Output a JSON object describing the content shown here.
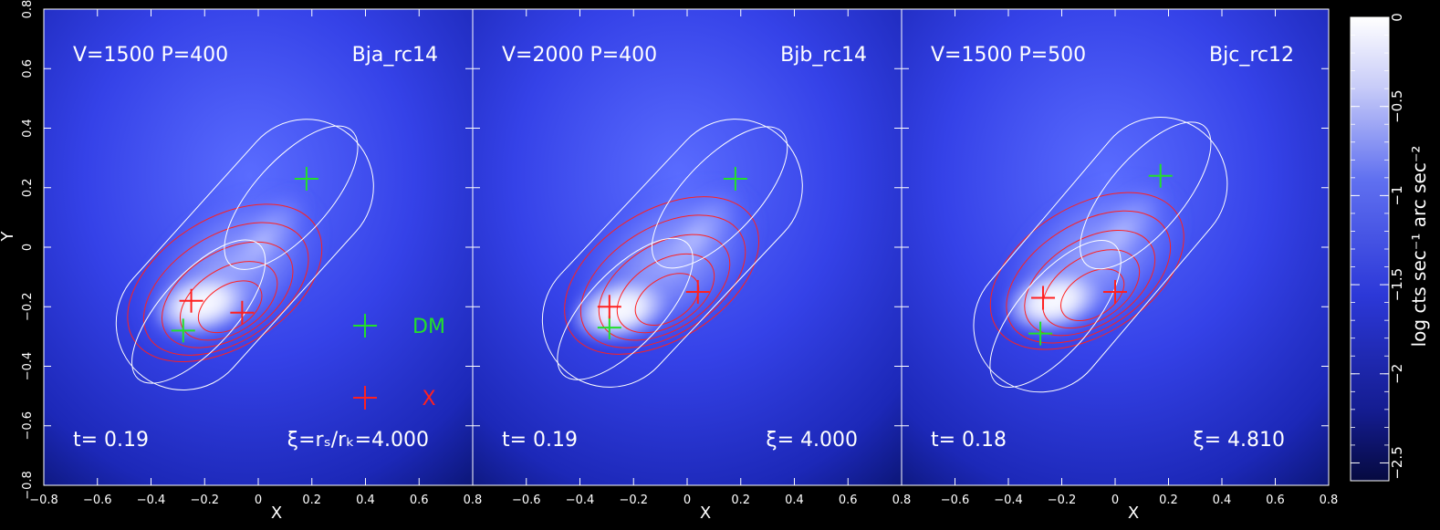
{
  "figure": {
    "x_axis_label": "X",
    "y_axis_label": "Y",
    "colorbar_label": "log cts sec⁻¹ arc sec⁻²",
    "colorbar_ticks": [
      "0",
      "−0.5",
      "−1",
      "−1.5",
      "−2",
      "−2.5"
    ],
    "legend": {
      "dm_label": "DM",
      "x_label": "X"
    },
    "colors": {
      "background": "#000000",
      "map_deep": "#0a1470",
      "map_mid": "#3040e0",
      "map_light": "#ffffff",
      "red_contour": "#ff2020",
      "white_contour": "#ffffff",
      "dm_marker": "#22e02a",
      "x_marker": "#ff2020",
      "tick_text": "#ffffff"
    }
  },
  "chart_data": [
    {
      "type": "heatmap",
      "title_left": "V=1500   P=400",
      "title_right": "Bja_rc14",
      "time_label": "t=   0.19",
      "xi_label": "ξ=rₛ/rₖ=4.000",
      "xlim": [
        -0.8,
        0.8
      ],
      "ylim": [
        -0.8,
        0.8
      ],
      "x_ticks": [
        "−0.8",
        "−0.6",
        "−0.4",
        "−0.2",
        "0",
        "0.2",
        "0.4",
        "0.6",
        "0.8"
      ],
      "y_ticks": [
        "−0.8",
        "−0.6",
        "−0.4",
        "−0.2",
        "0",
        "0.2",
        "0.4",
        "0.6",
        "0.8"
      ],
      "dm_peaks": [
        [
          -0.28,
          -0.28
        ],
        [
          0.18,
          0.23
        ]
      ],
      "x_peaks": [
        [
          -0.25,
          -0.18
        ],
        [
          -0.06,
          -0.22
        ]
      ],
      "show_legend": true
    },
    {
      "type": "heatmap",
      "title_left": "V=2000   P=400",
      "title_right": "Bjb_rc14",
      "time_label": "t=   0.19",
      "xi_label": "ξ=  4.000",
      "xlim": [
        -0.8,
        0.8
      ],
      "ylim": [
        -0.8,
        0.8
      ],
      "x_ticks": [
        "−0.8",
        "−0.6",
        "−0.4",
        "−0.2",
        "0",
        "0.2",
        "0.4",
        "0.6",
        "0.8"
      ],
      "dm_peaks": [
        [
          -0.29,
          -0.27
        ],
        [
          0.18,
          0.23
        ]
      ],
      "x_peaks": [
        [
          -0.29,
          -0.2
        ],
        [
          0.04,
          -0.15
        ]
      ],
      "show_legend": false
    },
    {
      "type": "heatmap",
      "title_left": "V=1500   P=500",
      "title_right": "Bjc_rc12",
      "time_label": "t=   0.18",
      "xi_label": "ξ=  4.810",
      "xlim": [
        -0.8,
        0.8
      ],
      "ylim": [
        -0.8,
        0.8
      ],
      "x_ticks": [
        "−0.8",
        "−0.6",
        "−0.4",
        "−0.2",
        "0",
        "0.2",
        "0.4",
        "0.6",
        "0.8"
      ],
      "dm_peaks": [
        [
          -0.28,
          -0.29
        ],
        [
          0.17,
          0.24
        ]
      ],
      "x_peaks": [
        [
          -0.27,
          -0.17
        ],
        [
          0.0,
          -0.15
        ]
      ],
      "show_legend": false
    }
  ]
}
